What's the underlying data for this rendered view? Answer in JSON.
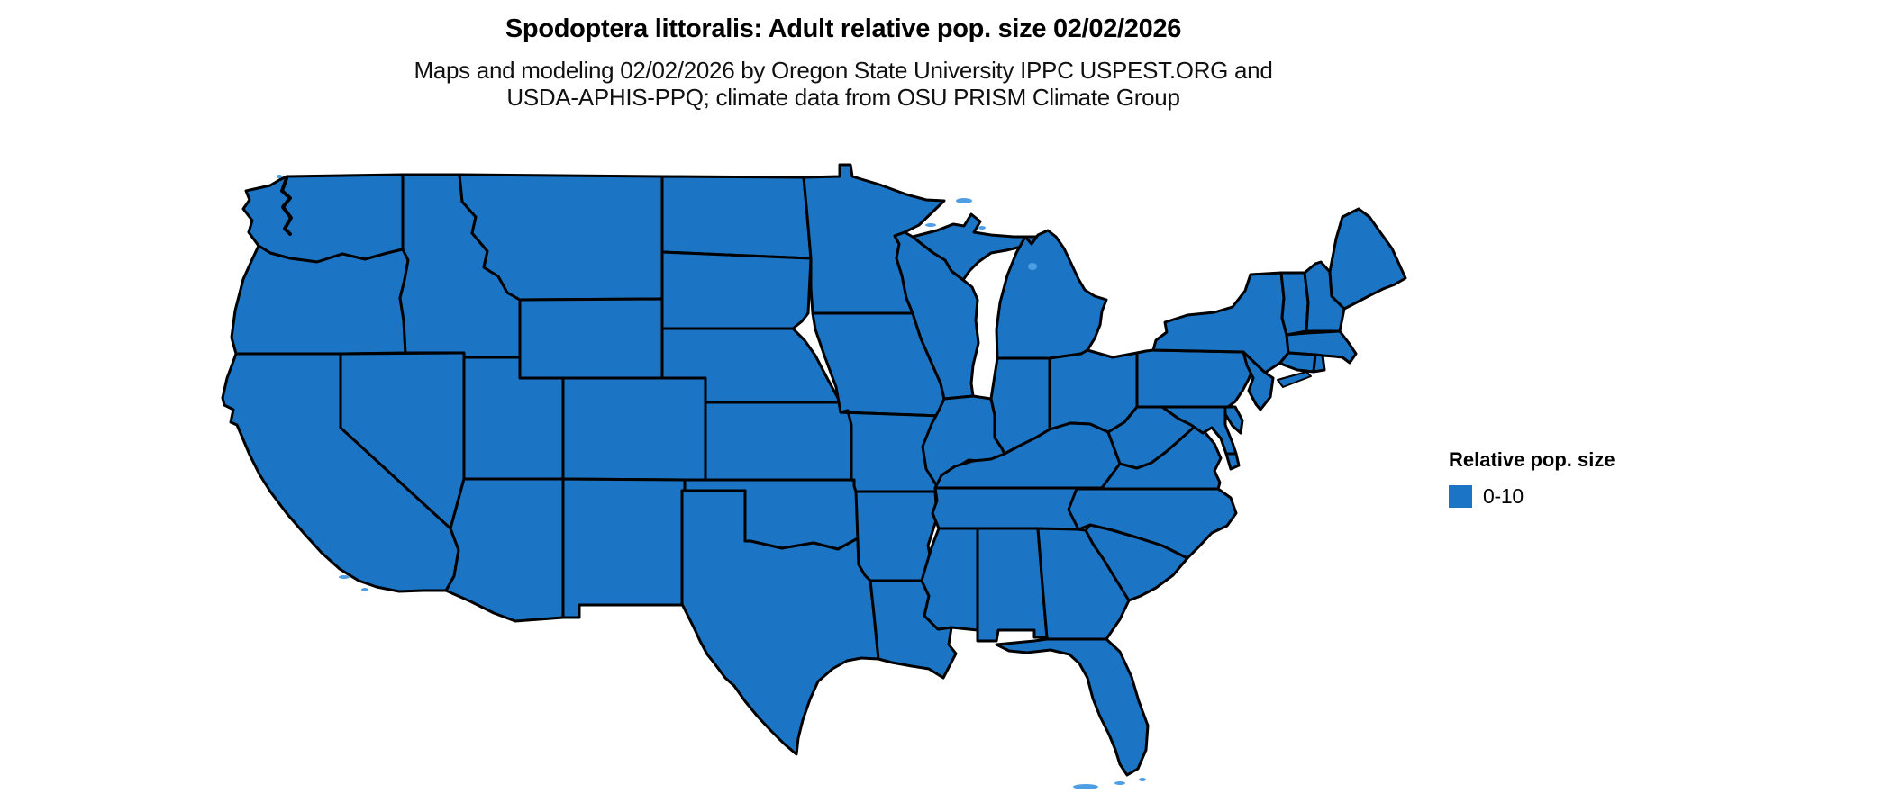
{
  "header": {
    "title": "Spodoptera littoralis: Adult relative pop. size 02/02/2026",
    "subtitle_line1": "Maps and modeling 02/02/2026 by Oregon State University IPPC USPEST.ORG and",
    "subtitle_line2": "USDA-APHIS-PPQ; climate data from OSU PRISM Climate Group"
  },
  "legend": {
    "title": "Relative pop. size",
    "items": [
      {
        "label": "0-10",
        "color": "#1B75C4"
      }
    ]
  },
  "map": {
    "region": "Continental United States",
    "fill_color": "#1B75C4",
    "border_color": "#000000",
    "background_color": "#FFFFFF",
    "water_accent_color": "#4E9EE3"
  }
}
